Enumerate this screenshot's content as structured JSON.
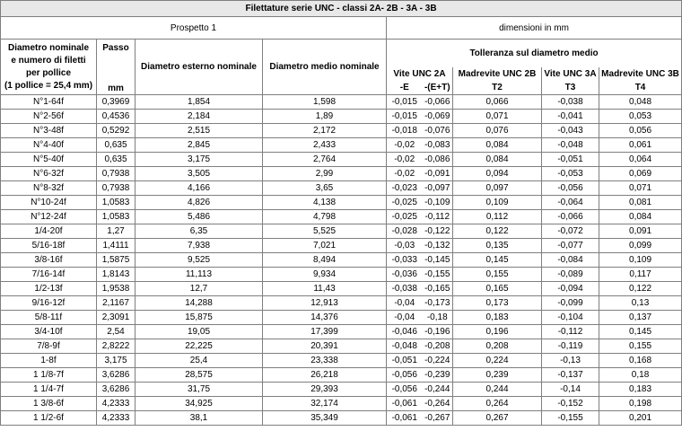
{
  "title": "Filettature serie UNC - classi 2A- 2B - 3A - 3B",
  "prospetto": "Prospetto 1",
  "dimensioni": "dimensioni in mm",
  "headers": {
    "diam_nominale_l1": "Diametro nominale",
    "diam_nominale_l2": "e numero di filetti",
    "diam_nominale_l3": "per pollice",
    "diam_nominale_l4": "(1 pollice = 25,4 mm)",
    "passo": "Passo",
    "passo_unit": "mm",
    "diam_esterno": "Diametro esterno nominale",
    "diam_medio": "Diametro medio nominale",
    "tolleranza": "Tolleranza sul diametro medio",
    "vite2a": "Vite UNC 2A",
    "vite2a_e": "-E",
    "vite2a_et": "-(E+T)",
    "madrevite2b": "Madrevite UNC 2B",
    "t2": "T2",
    "vite3a": "Vite UNC 3A",
    "t3": "T3",
    "madrevite3b": "Madrevite UNC 3B",
    "t4": "T4"
  },
  "rows": [
    [
      "N°1-64f",
      "0,3969",
      "1,854",
      "1,598",
      "-0,015",
      "-0,066",
      "0,066",
      "-0,038",
      "0,048"
    ],
    [
      "N°2-56f",
      "0,4536",
      "2,184",
      "1,89",
      "-0,015",
      "-0,069",
      "0,071",
      "-0,041",
      "0,053"
    ],
    [
      "N°3-48f",
      "0,5292",
      "2,515",
      "2,172",
      "-0,018",
      "-0,076",
      "0,076",
      "-0,043",
      "0,056"
    ],
    [
      "N°4-40f",
      "0,635",
      "2,845",
      "2,433",
      "-0,02",
      "-0,083",
      "0,084",
      "-0,048",
      "0,061"
    ],
    [
      "N°5-40f",
      "0,635",
      "3,175",
      "2,764",
      "-0,02",
      "-0,086",
      "0,084",
      "-0,051",
      "0,064"
    ],
    [
      "N°6-32f",
      "0,7938",
      "3,505",
      "2,99",
      "-0,02",
      "-0,091",
      "0,094",
      "-0,053",
      "0,069"
    ],
    [
      "N°8-32f",
      "0,7938",
      "4,166",
      "3,65",
      "-0,023",
      "-0,097",
      "0,097",
      "-0,056",
      "0,071"
    ],
    [
      "N°10-24f",
      "1,0583",
      "4,826",
      "4,138",
      "-0,025",
      "-0,109",
      "0,109",
      "-0,064",
      "0,081"
    ],
    [
      "N°12-24f",
      "1,0583",
      "5,486",
      "4,798",
      "-0,025",
      "-0,112",
      "0,112",
      "-0,066",
      "0,084"
    ],
    [
      "1/4-20f",
      "1,27",
      "6,35",
      "5,525",
      "-0,028",
      "-0,122",
      "0,122",
      "-0,072",
      "0,091"
    ],
    [
      "5/16-18f",
      "1,4111",
      "7,938",
      "7,021",
      "-0,03",
      "-0,132",
      "0,135",
      "-0,077",
      "0,099"
    ],
    [
      "3/8-16f",
      "1,5875",
      "9,525",
      "8,494",
      "-0,033",
      "-0,145",
      "0,145",
      "-0,084",
      "0,109"
    ],
    [
      "7/16-14f",
      "1,8143",
      "11,113",
      "9,934",
      "-0,036",
      "-0,155",
      "0,155",
      "-0,089",
      "0,117"
    ],
    [
      "1/2-13f",
      "1,9538",
      "12,7",
      "11,43",
      "-0,038",
      "-0,165",
      "0,165",
      "-0,094",
      "0,122"
    ],
    [
      "9/16-12f",
      "2,1167",
      "14,288",
      "12,913",
      "-0,04",
      "-0,173",
      "0,173",
      "-0,099",
      "0,13"
    ],
    [
      "5/8-11f",
      "2,3091",
      "15,875",
      "14,376",
      "-0,04",
      "-0,18",
      "0,183",
      "-0,104",
      "0,137"
    ],
    [
      "3/4-10f",
      "2,54",
      "19,05",
      "17,399",
      "-0,046",
      "-0,196",
      "0,196",
      "-0,112",
      "0,145"
    ],
    [
      "7/8-9f",
      "2,8222",
      "22,225",
      "20,391",
      "-0,048",
      "-0,208",
      "0,208",
      "-0,119",
      "0,155"
    ],
    [
      "1-8f",
      "3,175",
      "25,4",
      "23,338",
      "-0,051",
      "-0,224",
      "0,224",
      "-0,13",
      "0,168"
    ],
    [
      "1 1/8-7f",
      "3,6286",
      "28,575",
      "26,218",
      "-0,056",
      "-0,239",
      "0,239",
      "-0,137",
      "0,18"
    ],
    [
      "1 1/4-7f",
      "3,6286",
      "31,75",
      "29,393",
      "-0,056",
      "-0,244",
      "0,244",
      "-0,14",
      "0,183"
    ],
    [
      "1 3/8-6f",
      "4,2333",
      "34,925",
      "32,174",
      "-0,061",
      "-0,264",
      "0,264",
      "-0,152",
      "0,198"
    ],
    [
      "1 1/2-6f",
      "4,2333",
      "38,1",
      "35,349",
      "-0,061",
      "-0,267",
      "0,267",
      "-0,155",
      "0,201"
    ]
  ]
}
